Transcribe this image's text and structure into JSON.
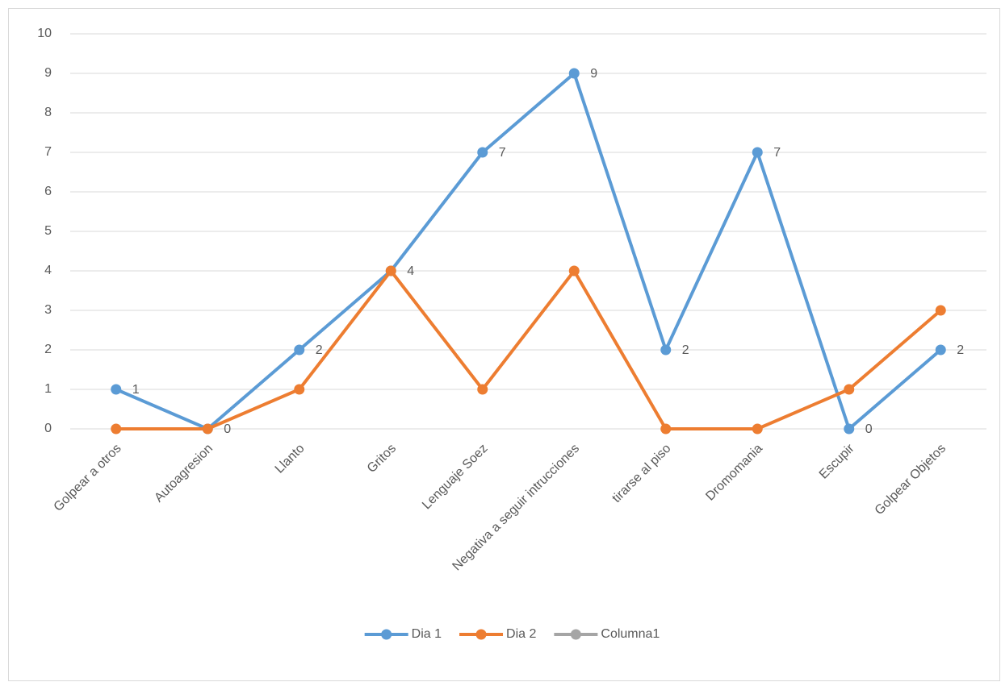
{
  "chart_data": {
    "type": "line",
    "categories": [
      "Golpear a otros",
      "Autoagresion",
      "Llanto",
      "Gritos",
      "Lenguaje Soez",
      "Negativa a seguir intrucciones",
      "tirarse al piso",
      "Dromomania",
      "Escupir",
      "Golpear Objetos"
    ],
    "series": [
      {
        "name": "Dia 1",
        "color": "#5b9bd5",
        "values": [
          1,
          0,
          2,
          4,
          7,
          9,
          2,
          7,
          0,
          2
        ],
        "data_labels": true
      },
      {
        "name": "Dia 2",
        "color": "#ed7d31",
        "values": [
          0,
          0,
          1,
          4,
          1,
          4,
          0,
          0,
          1,
          3
        ]
      },
      {
        "name": "Columna1",
        "color": "#a5a5a5",
        "values": [
          null,
          null,
          null,
          null,
          null,
          null,
          null,
          null,
          null,
          null
        ]
      }
    ],
    "ylim": [
      0,
      10
    ],
    "yticks": [
      0,
      1,
      2,
      3,
      4,
      5,
      6,
      7,
      8,
      9,
      10
    ],
    "grid": true,
    "legend": "bottom"
  }
}
